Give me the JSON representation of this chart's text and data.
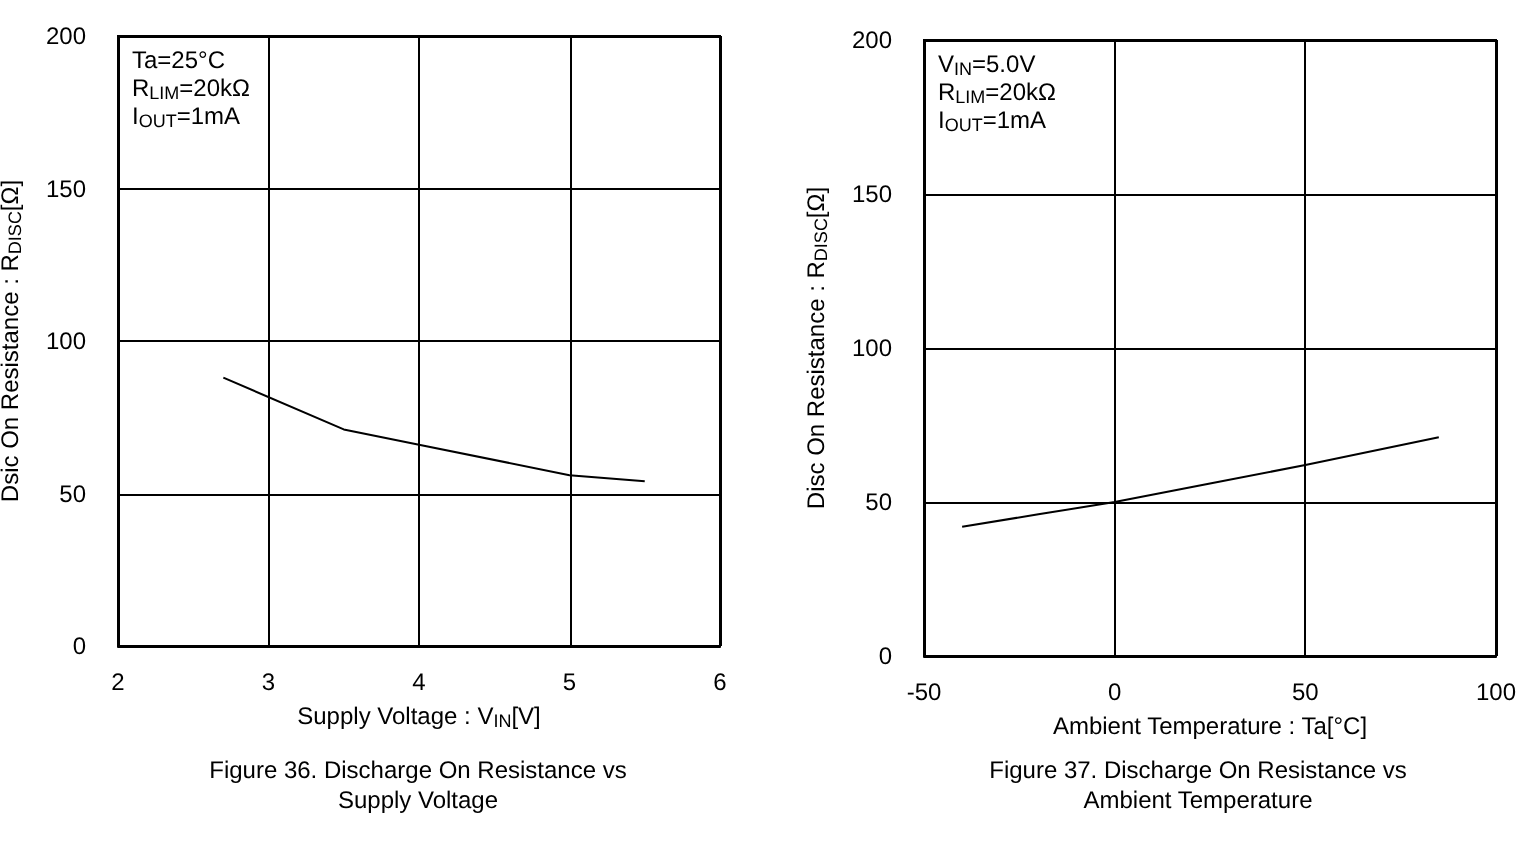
{
  "chart_data": [
    {
      "type": "line",
      "title": "Figure 36. Discharge On Resistance vs Supply Voltage",
      "xlabel": "Supply Voltage : V$_{IN}$[V]",
      "ylabel": "Dsic On Resistance : R$_{DISC}$[Ω]",
      "annotations": [
        "Ta=25°C",
        "R$_{LIM}$=20kΩ",
        "I$_{OUT}$=1mA"
      ],
      "x": [
        2.7,
        3.5,
        4.0,
        5.0,
        5.5
      ],
      "series": [
        {
          "color": "#000000",
          "values": [
            88,
            71,
            66,
            56,
            54
          ]
        }
      ],
      "xlim": [
        2,
        6
      ],
      "xticks": [
        2,
        3,
        4,
        5,
        6
      ],
      "ylim": [
        0,
        200
      ],
      "yticks": [
        0,
        50,
        100,
        150,
        200
      ],
      "grid": true,
      "marker": "none",
      "line_style": "solid"
    },
    {
      "type": "line",
      "title": "Figure 37. Discharge On Resistance vs Ambient Temperature",
      "xlabel": "Ambient Temperature : Ta[°C]",
      "ylabel": "Disc On Resistance : R$_{DISC}$[Ω]",
      "annotations": [
        "V$_{IN}$=5.0V",
        "R$_{LIM}$=20kΩ",
        "I$_{OUT}$=1mA"
      ],
      "x": [
        -40,
        -20,
        0,
        25,
        50,
        85
      ],
      "series": [
        {
          "color": "#000000",
          "values": [
            42,
            46,
            50,
            56,
            62,
            71
          ]
        }
      ],
      "xlim": [
        -50,
        100
      ],
      "xticks": [
        -50,
        0,
        50,
        100
      ],
      "ylim": [
        0,
        200
      ],
      "yticks": [
        0,
        50,
        100,
        150,
        200
      ],
      "grid": true,
      "marker": "none",
      "line_style": "solid"
    }
  ]
}
